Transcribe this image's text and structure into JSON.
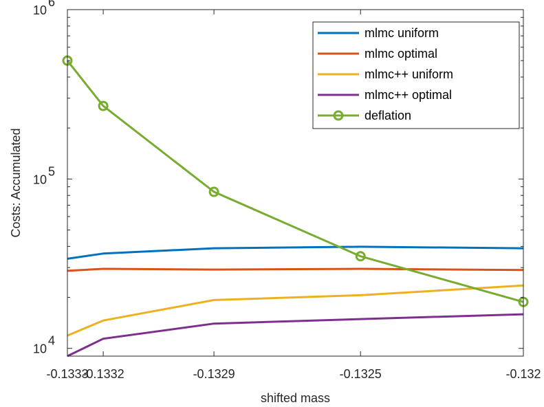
{
  "chart_data": {
    "type": "line",
    "title": "",
    "xlabel": "shifted mass",
    "ylabel": "Costs: Accumulated",
    "yscale": "log",
    "xlim": [
      -0.13335,
      -0.13195
    ],
    "ylim": [
      9000,
      1000000
    ],
    "x": [
      -0.13335,
      -0.13324,
      -0.1329,
      -0.13245,
      -0.13195
    ],
    "x_ticks": [
      {
        "value": -0.13335,
        "label": "-0.1333"
      },
      {
        "value": -0.13324,
        "label": "-0.1332"
      },
      {
        "value": -0.1329,
        "label": "-0.1329"
      },
      {
        "value": -0.13245,
        "label": "-0.1325"
      },
      {
        "value": -0.13195,
        "label": "-0.132"
      }
    ],
    "y_ticks": [
      {
        "value": 10000,
        "base": "10",
        "exp": "4"
      },
      {
        "value": 100000,
        "base": "10",
        "exp": "5"
      },
      {
        "value": 1000000,
        "base": "10",
        "exp": "6"
      }
    ],
    "grid": false,
    "legend_position": "top-right",
    "series": [
      {
        "name": "mlmc uniform",
        "color": "#0072BD",
        "marker": "none",
        "values": [
          33800,
          36300,
          39000,
          39800,
          39000
        ]
      },
      {
        "name": "mlmc optimal",
        "color": "#D95319",
        "marker": "none",
        "values": [
          28700,
          29500,
          29200,
          29500,
          29000
        ]
      },
      {
        "name": "mlmc++ uniform",
        "color": "#EDB120",
        "marker": "none",
        "values": [
          11900,
          14600,
          19300,
          20600,
          23500
        ]
      },
      {
        "name": "mlmc++ optimal",
        "color": "#7E2F8E",
        "marker": "none",
        "values": [
          9000,
          11400,
          14000,
          14900,
          15900
        ]
      },
      {
        "name": "deflation",
        "color": "#77AC30",
        "marker": "circle",
        "values": [
          500000,
          270000,
          84000,
          35000,
          18800
        ]
      }
    ]
  }
}
